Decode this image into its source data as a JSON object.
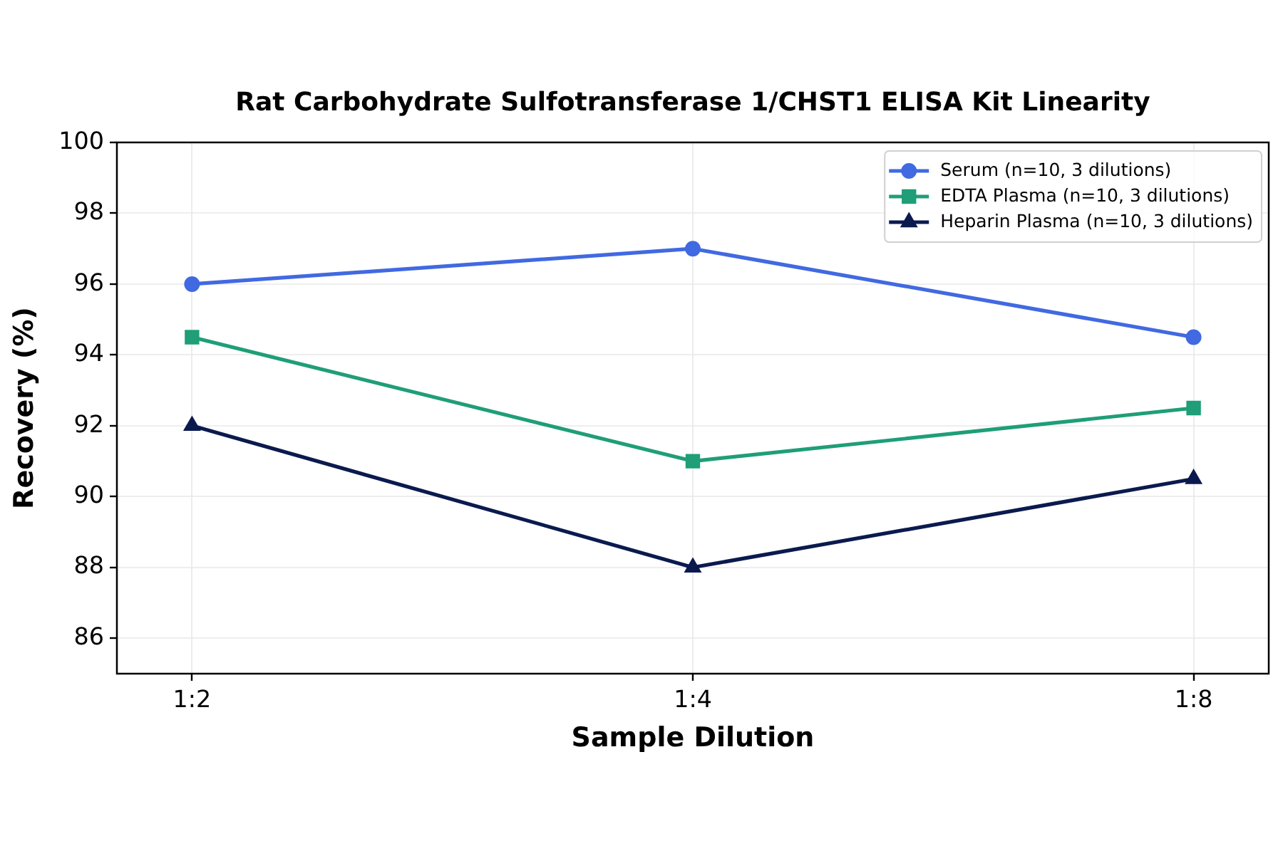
{
  "chart_data": {
    "type": "line",
    "title": "Rat Carbohydrate Sulfotransferase 1/CHST1 ELISA Kit Linearity",
    "xlabel": "Sample Dilution",
    "ylabel": "Recovery (%)",
    "categories": [
      "1:2",
      "1:4",
      "1:8"
    ],
    "series": [
      {
        "name": "Serum (n=10, 3 dilutions)",
        "color": "#4169e1",
        "marker": "circle",
        "values": [
          96,
          97,
          94.5
        ]
      },
      {
        "name": "EDTA Plasma (n=10, 3 dilutions)",
        "color": "#1f9e77",
        "marker": "square",
        "values": [
          94.5,
          91,
          92.5
        ]
      },
      {
        "name": "Heparin Plasma (n=10, 3 dilutions)",
        "color": "#0b1a4e",
        "marker": "triangle",
        "values": [
          92,
          88,
          90.5
        ]
      }
    ],
    "ylim": [
      85,
      100
    ],
    "yticks": [
      86,
      88,
      90,
      92,
      94,
      96,
      98,
      100
    ],
    "grid": true,
    "legend": "top right",
    "line_style": "solid"
  }
}
